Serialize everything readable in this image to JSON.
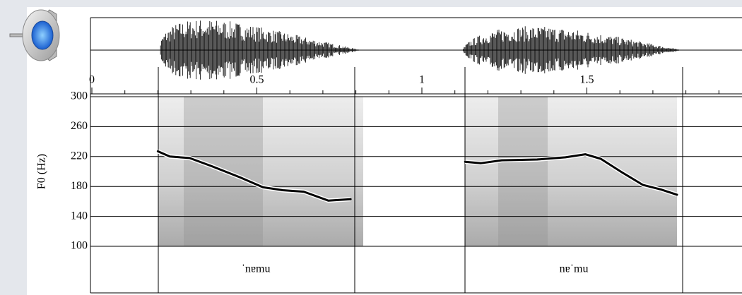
{
  "chart_data": {
    "type": "line",
    "y_label": "F0 (Hz)",
    "xlim": [
      0,
      1.97
    ],
    "xticks": [
      0,
      0.5,
      1,
      1.5
    ],
    "ylim": [
      100,
      300
    ],
    "yticks": [
      100,
      140,
      180,
      220,
      260,
      300
    ],
    "grid": true,
    "series": [
      {
        "color": "#000000",
        "x": [
          0.2,
          0.236,
          0.296,
          0.364,
          0.45,
          0.518,
          0.578,
          0.642,
          0.717,
          0.784
        ],
        "values": [
          227,
          220,
          218,
          207,
          192,
          179,
          175,
          173,
          161,
          163
        ]
      },
      {
        "color": "#000000",
        "x": [
          1.131,
          1.178,
          1.242,
          1.349,
          1.435,
          1.495,
          1.542,
          1.606,
          1.67,
          1.724,
          1.773
        ],
        "values": [
          213,
          211,
          215,
          216,
          219,
          223,
          217,
          199,
          182,
          176,
          169
        ]
      }
    ],
    "annotations": [
      "ˈnɐmu",
      "nɐˈmu"
    ]
  }
}
